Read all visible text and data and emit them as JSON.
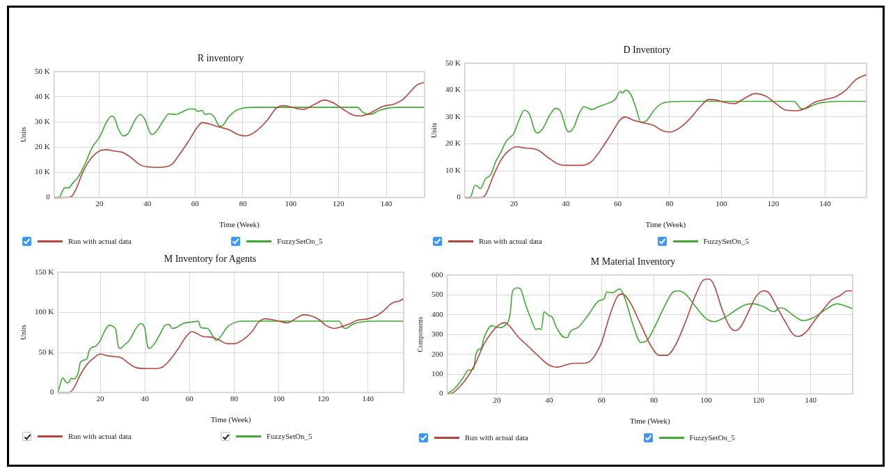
{
  "chart_data": [
    {
      "type": "line",
      "title": "R inventory",
      "xlabel": "Time (Week)",
      "ylabel": "Units",
      "xlim": [
        1,
        156
      ],
      "xticks": [
        20,
        40,
        60,
        80,
        100,
        120,
        140
      ],
      "ylim": [
        0,
        50000
      ],
      "yticks": [
        0,
        {
          "value": 10000,
          "label": "10 K"
        },
        {
          "value": 20000,
          "label": "20 K"
        },
        {
          "value": 30000,
          "label": "30 K"
        },
        {
          "value": 40000,
          "label": "40 K"
        },
        {
          "value": 50000,
          "label": "50 K"
        }
      ],
      "grid": true,
      "legend": "bottom",
      "marker": "none",
      "line_style": "solid",
      "series": [
        {
          "name": "Run with actual data",
          "color": "#b5453b",
          "x": [
            1,
            5,
            8,
            10,
            13,
            16,
            20,
            23,
            26,
            30,
            33,
            37,
            40,
            45,
            50,
            53,
            57,
            61,
            63,
            66,
            70,
            74,
            78,
            81,
            85,
            90,
            94,
            97,
            100,
            105,
            110,
            114,
            118,
            122,
            126,
            129,
            132,
            136,
            139,
            143,
            147,
            150,
            153,
            156
          ],
          "values": [
            0,
            0,
            300,
            3000,
            10000,
            15000,
            18500,
            19000,
            18500,
            17800,
            16000,
            13000,
            12200,
            12000,
            13000,
            16500,
            22000,
            28000,
            29800,
            29200,
            28000,
            27000,
            25000,
            24500,
            26000,
            30500,
            35500,
            36500,
            36000,
            35000,
            37000,
            38700,
            37500,
            35000,
            32800,
            32400,
            33000,
            35000,
            36300,
            37000,
            39000,
            42000,
            44800,
            45700
          ]
        },
        {
          "name": "FuzzySetOn_5",
          "color": "#3da832",
          "x": [
            1,
            3,
            5,
            6,
            7,
            9,
            11,
            14,
            17,
            20,
            23,
            25,
            26,
            28,
            30,
            32,
            35,
            37,
            39,
            41,
            42,
            44,
            47,
            49,
            52,
            55,
            58,
            60,
            61,
            63,
            64,
            66,
            68,
            70,
            71,
            74,
            77,
            80,
            85,
            128,
            130,
            133,
            137,
            140,
            145,
            156
          ],
          "values": [
            0,
            0,
            3500,
            4000,
            3800,
            6000,
            8000,
            13500,
            20000,
            24000,
            30000,
            32300,
            32000,
            27000,
            24500,
            25500,
            31000,
            33000,
            31000,
            26000,
            25000,
            26500,
            31000,
            33200,
            33000,
            34200,
            35200,
            35000,
            34200,
            34600,
            33000,
            33300,
            32000,
            28500,
            28300,
            32000,
            34500,
            35500,
            35800,
            35800,
            34000,
            33000,
            34500,
            35400,
            35800,
            35800
          ]
        }
      ]
    },
    {
      "type": "line",
      "title": "D Inventory",
      "xlabel": "Time (Week)",
      "ylabel": "Units",
      "xlim": [
        1,
        156
      ],
      "xticks": [
        20,
        40,
        60,
        80,
        100,
        120,
        140
      ],
      "ylim": [
        0,
        50000
      ],
      "yticks": [
        0,
        {
          "value": 10000,
          "label": "10 K"
        },
        {
          "value": 20000,
          "label": "20 K"
        },
        {
          "value": 30000,
          "label": "30 K"
        },
        {
          "value": 40000,
          "label": "40 K"
        },
        {
          "value": 50000,
          "label": "50 K"
        }
      ],
      "grid": true,
      "legend": "bottom",
      "marker": "none",
      "line_style": "solid",
      "series": [
        {
          "name": "Run with actual data",
          "color": "#b5453b",
          "x": [
            1,
            7,
            9,
            12,
            15,
            18,
            21,
            24,
            29,
            33,
            37,
            41,
            46,
            50,
            54,
            58,
            61,
            63,
            66,
            70,
            74,
            77,
            80,
            84,
            88,
            92,
            95,
            98,
            101,
            105,
            109,
            113,
            117,
            121,
            125,
            129,
            132,
            136,
            140,
            144,
            148,
            152,
            156
          ],
          "values": [
            0,
            0,
            1000,
            8000,
            14000,
            17500,
            18900,
            18500,
            17800,
            15000,
            12500,
            12000,
            12000,
            13500,
            18500,
            24500,
            29000,
            30000,
            28800,
            27800,
            26800,
            25000,
            24400,
            26000,
            29500,
            34000,
            36500,
            36300,
            35500,
            35000,
            37000,
            38700,
            37800,
            35000,
            32500,
            32300,
            33000,
            35500,
            36500,
            37500,
            40000,
            44000,
            45800
          ]
        },
        {
          "name": "FuzzySetOn_5",
          "color": "#3da832",
          "x": [
            1,
            3,
            5,
            6,
            7,
            9,
            11,
            13,
            15,
            17,
            20,
            22,
            24,
            26,
            28,
            29,
            31,
            34,
            36,
            38,
            40,
            41,
            43,
            45,
            47,
            50,
            53,
            56,
            59,
            61,
            62,
            63,
            65,
            67,
            69,
            71,
            74,
            77,
            80,
            85,
            128,
            131,
            133,
            137,
            140,
            145,
            156
          ],
          "values": [
            0,
            0,
            4500,
            4200,
            3300,
            7000,
            8500,
            13500,
            17000,
            21000,
            24000,
            29000,
            32500,
            31000,
            25000,
            24000,
            25500,
            31000,
            33200,
            32000,
            26000,
            24500,
            26000,
            31000,
            33800,
            32800,
            34000,
            35000,
            36500,
            39500,
            39000,
            40000,
            38500,
            33500,
            28000,
            28500,
            32500,
            35000,
            35600,
            35800,
            35800,
            33000,
            33300,
            35000,
            35500,
            35800,
            35800
          ]
        }
      ]
    },
    {
      "type": "line",
      "title": "M Inventory for Agents",
      "xlabel": "Time (Week)",
      "ylabel": "Units",
      "xlim": [
        1,
        156
      ],
      "xticks": [
        20,
        40,
        60,
        80,
        100,
        120,
        140
      ],
      "ylim": [
        0,
        150000
      ],
      "yticks": [
        0,
        {
          "value": 50000,
          "label": "50 K"
        },
        {
          "value": 100000,
          "label": "100 K"
        },
        {
          "value": 150000,
          "label": "150 K"
        }
      ],
      "grid": true,
      "legend": "bottom",
      "marker": "none",
      "line_style": "solid",
      "series": [
        {
          "name": "Run with actual data",
          "color": "#b5453b",
          "x": [
            1,
            6,
            8,
            11,
            14,
            17,
            20,
            23,
            26,
            29,
            33,
            36,
            41,
            45,
            48,
            51,
            55,
            58,
            61,
            63,
            66,
            70,
            73,
            77,
            80,
            84,
            88,
            91,
            94,
            97,
            100,
            104,
            108,
            111,
            114,
            118,
            121,
            125,
            128,
            132,
            135,
            140,
            144,
            147,
            150,
            152,
            154,
            156
          ],
          "values": [
            0,
            0,
            5000,
            22000,
            35000,
            43000,
            48000,
            46000,
            45000,
            44000,
            36000,
            31000,
            30000,
            30000,
            32000,
            40000,
            55000,
            68000,
            76000,
            74000,
            70000,
            69000,
            66000,
            61000,
            61000,
            66000,
            76000,
            88000,
            92000,
            91000,
            89000,
            87000,
            93000,
            97000,
            96000,
            91000,
            84000,
            80000,
            82000,
            86000,
            90000,
            92000,
            96000,
            102000,
            110000,
            113000,
            114000,
            117000
          ]
        },
        {
          "name": "FuzzySetOn_5",
          "color": "#3da832",
          "x": [
            1,
            2,
            3,
            4,
            5,
            6,
            7,
            8,
            10,
            11,
            12,
            14,
            15,
            16,
            18,
            20,
            22,
            24,
            26,
            27,
            28,
            29,
            31,
            33,
            36,
            38,
            40,
            41,
            42,
            44,
            47,
            49,
            51,
            52,
            54,
            57,
            61,
            64,
            65,
            68,
            71,
            72,
            74,
            77,
            80,
            84,
            90,
            127,
            129,
            130,
            133,
            137,
            142,
            156
          ],
          "values": [
            0,
            10000,
            18000,
            16000,
            12000,
            13000,
            18000,
            17000,
            24000,
            37000,
            40000,
            42000,
            52000,
            56000,
            58000,
            65000,
            77000,
            84000,
            82000,
            78000,
            58000,
            55000,
            60000,
            65000,
            80000,
            86000,
            80000,
            60000,
            55000,
            60000,
            74000,
            84000,
            85000,
            80000,
            81000,
            86000,
            88000,
            89000,
            81000,
            80000,
            68000,
            65000,
            70000,
            82000,
            87000,
            89000,
            89000,
            89000,
            81000,
            80000,
            85000,
            88000,
            89000,
            89000
          ]
        }
      ]
    },
    {
      "type": "line",
      "title": "M Material Inventory",
      "xlabel": "Time (Week)",
      "ylabel": "Components",
      "xlim": [
        1,
        156
      ],
      "xticks": [
        20,
        40,
        60,
        80,
        100,
        120,
        140
      ],
      "ylim": [
        0,
        600
      ],
      "yticks": [
        0,
        100,
        200,
        300,
        400,
        500,
        600
      ],
      "grid": true,
      "legend": "bottom",
      "marker": "none",
      "line_style": "solid",
      "series": [
        {
          "name": "Run with actual data",
          "color": "#b5453b",
          "x": [
            1,
            3,
            6,
            9,
            12,
            15,
            18,
            21,
            23,
            25,
            28,
            32,
            36,
            40,
            43,
            46,
            49,
            53,
            56,
            60,
            63,
            66,
            68,
            71,
            75,
            79,
            82,
            85,
            88,
            92,
            96,
            99,
            101,
            103,
            106,
            109,
            111,
            113,
            116,
            119,
            122,
            124,
            127,
            130,
            133,
            135,
            138,
            142,
            145,
            148,
            151,
            154,
            156
          ],
          "values": [
            0,
            5,
            40,
            90,
            160,
            250,
            310,
            350,
            360,
            340,
            290,
            240,
            190,
            145,
            135,
            145,
            155,
            155,
            170,
            260,
            390,
            490,
            505,
            460,
            350,
            240,
            195,
            195,
            240,
            360,
            500,
            575,
            580,
            550,
            430,
            340,
            320,
            335,
            410,
            490,
            520,
            510,
            440,
            370,
            305,
            290,
            310,
            380,
            430,
            475,
            495,
            520,
            520
          ]
        },
        {
          "name": "FuzzySetOn_5",
          "color": "#3da832",
          "x": [
            1,
            4,
            7,
            9,
            11,
            12,
            13,
            14,
            15,
            17,
            18,
            19,
            21,
            23,
            25,
            26,
            28,
            29,
            31,
            33,
            35,
            36,
            37,
            38,
            40,
            41,
            43,
            46,
            47,
            48,
            51,
            55,
            59,
            61,
            62,
            64,
            67,
            69,
            72,
            75,
            77,
            80,
            84,
            87,
            89,
            92,
            96,
            100,
            103,
            107,
            111,
            115,
            118,
            122,
            126,
            128,
            130,
            133,
            137,
            141,
            145,
            150,
            153,
            156
          ],
          "values": [
            0,
            30,
            80,
            120,
            125,
            200,
            225,
            230,
            280,
            335,
            345,
            340,
            335,
            345,
            400,
            520,
            535,
            530,
            450,
            380,
            325,
            330,
            325,
            415,
            395,
            390,
            330,
            285,
            285,
            315,
            335,
            400,
            470,
            480,
            515,
            510,
            530,
            480,
            350,
            260,
            265,
            330,
            440,
            510,
            520,
            505,
            440,
            380,
            365,
            385,
            420,
            450,
            455,
            440,
            415,
            435,
            430,
            400,
            370,
            385,
            420,
            455,
            445,
            430
          ]
        }
      ]
    }
  ]
}
